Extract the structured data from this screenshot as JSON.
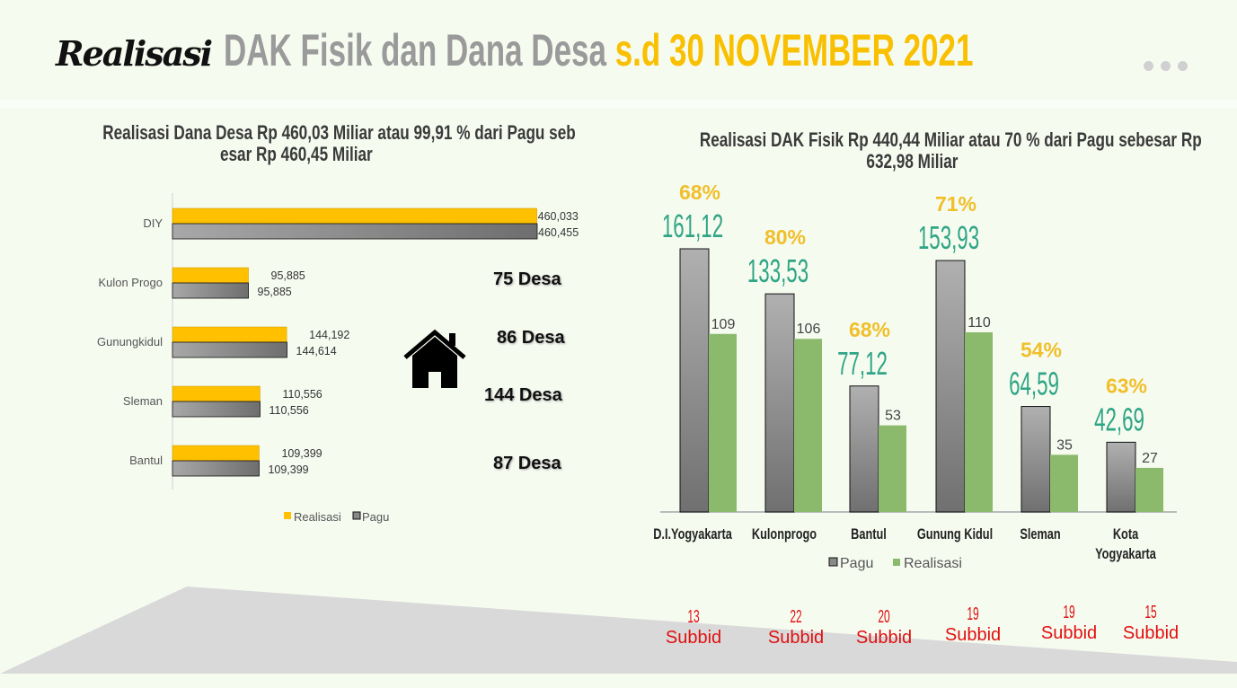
{
  "title": {
    "part1": "Realisasi",
    "part2": "DAK Fisik dan Dana Desa",
    "part3": "s.d 30 NOVEMBER 2021"
  },
  "menu_icon": "more-horizontal-icon",
  "chart_data": [
    {
      "type": "bar",
      "orientation": "horizontal",
      "title_line1": "Realisasi Dana Desa Rp 460,03 Miliar atau 99,91 % dari Pagu seb",
      "title_line2": "esar Rp 460,45 Miliar",
      "categories": [
        "DIY",
        "Kulon Progo",
        "Gunungkidul",
        "Sleman",
        "Bantul"
      ],
      "series": [
        {
          "name": "Realisasi",
          "color": "#ffc000",
          "values": [
            460.033,
            95.885,
            144.192,
            110.556,
            109.399
          ],
          "labels": [
            "460,033",
            "95,885",
            "144,192",
            "110,556",
            "109,399"
          ]
        },
        {
          "name": "Pagu",
          "color": "#8c8c8c",
          "values": [
            460.455,
            95.885,
            144.614,
            110.556,
            109.399
          ],
          "labels": [
            "460,455",
            "95,885",
            "144,614",
            "110,556",
            "109,399"
          ]
        }
      ],
      "legend": "bottom",
      "annotations": {
        "desa": [
          "75 Desa",
          "86 Desa",
          "144 Desa",
          "87 Desa"
        ],
        "icon": "house-icon"
      }
    },
    {
      "type": "bar",
      "orientation": "vertical",
      "title_line1": "Realisasi DAK Fisik Rp 440,44 Miliar atau 70 % dari Pagu sebesar Rp",
      "title_line2": "632,98 Miliar",
      "categories": [
        "D.I.Yogyakarta",
        "Kulonprogo",
        "Bantul",
        "Gunung Kidul",
        "Sleman",
        "Kota Yogyakarta"
      ],
      "series": [
        {
          "name": "Pagu",
          "color": "#8c8c8c",
          "values": [
            161.12,
            133.53,
            77.12,
            153.93,
            64.59,
            42.69
          ],
          "labels": [
            "161,12",
            "133,53",
            "77,12",
            "153,93",
            "64,59",
            "42,69"
          ]
        },
        {
          "name": "Realisasi",
          "color": "#8cba6c",
          "values": [
            109,
            106,
            53,
            110,
            35,
            27
          ],
          "labels": [
            "109",
            "106",
            "53",
            "110",
            "35",
            "27"
          ]
        }
      ],
      "percent_labels": [
        "68%",
        "80%",
        "68%",
        "71%",
        "54%",
        "63%"
      ],
      "subbid_counts": [
        "13",
        "22",
        "20",
        "19",
        "19",
        "15"
      ],
      "subbid_label": "Subbid",
      "legend": "bottom",
      "ylim": [
        0,
        170
      ]
    }
  ]
}
